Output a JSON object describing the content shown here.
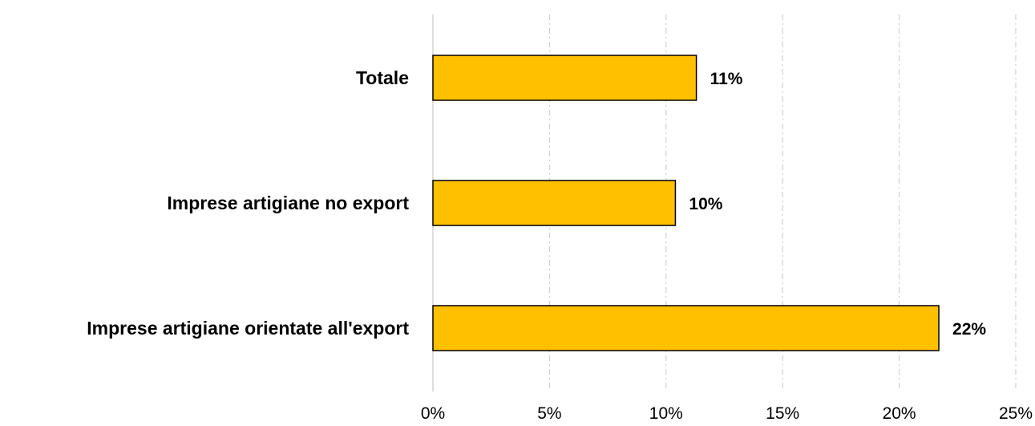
{
  "chart_data": {
    "type": "bar",
    "orientation": "horizontal",
    "categories": [
      "Totale",
      "Imprese artigiane no export",
      "Imprese artigiane orientate all'export"
    ],
    "values": [
      11.3,
      10.4,
      21.7
    ],
    "value_labels": [
      "11%",
      "10%",
      "22%"
    ],
    "xlim": [
      0,
      25
    ],
    "x_ticks": [
      0,
      5,
      10,
      15,
      20,
      25
    ],
    "x_tick_labels": [
      "0%",
      "5%",
      "10%",
      "15%",
      "20%",
      "25%"
    ],
    "title": "",
    "xlabel": "",
    "ylabel": "",
    "grid": true,
    "legend": "none",
    "bar_color": "#FFC000",
    "bar_edge_color": "#000000"
  }
}
